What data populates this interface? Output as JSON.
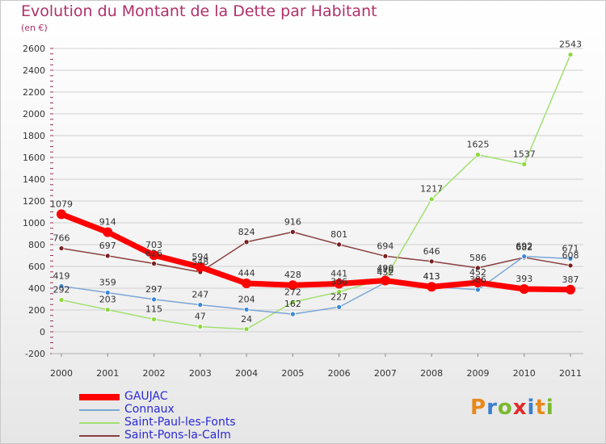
{
  "header": {
    "title": "Evolution du Montant de la Dette par Habitant",
    "subtitle": "(en €)"
  },
  "logo": {
    "text": "Proxiti"
  },
  "colors": {
    "title": "#b0306a",
    "legend_text": "#2a2ad8",
    "grid": "#d0d0d0"
  },
  "chart_data": {
    "type": "line",
    "x": [
      "2000",
      "2001",
      "2002",
      "2003",
      "2004",
      "2005",
      "2006",
      "2007",
      "2008",
      "2009",
      "2010",
      "2011"
    ],
    "ylim": [
      -200,
      2600
    ],
    "yticks": [
      -200,
      0,
      200,
      400,
      600,
      800,
      1000,
      1200,
      1400,
      1600,
      1800,
      2000,
      2200,
      2400,
      2600
    ],
    "grid": "horizontal",
    "legend_position": "bottom-left",
    "series": [
      {
        "name": "GAUJAC",
        "color": "#ff0000",
        "marker": "#ff0000",
        "width": 7,
        "values": [
          1079,
          914,
          703,
          594,
          444,
          428,
          441,
          470,
          413,
          452,
          393,
          387
        ]
      },
      {
        "name": "Connaux",
        "color": "#7aa6d6",
        "marker": "#3a88d8",
        "width": 1.5,
        "values": [
          419,
          359,
          297,
          247,
          204,
          162,
          227,
          452,
          413,
          386,
          692,
          671
        ]
      },
      {
        "name": "Saint-Paul-les-Fonts",
        "color": "#a2e070",
        "marker": "#8cd83a",
        "width": 1.5,
        "values": [
          292,
          203,
          115,
          47,
          24,
          272,
          366,
          490,
          1217,
          1625,
          1537,
          2543
        ]
      },
      {
        "name": "Saint-Pons-la-Calm",
        "color": "#8a4040",
        "marker": "#7a1e1e",
        "width": 1.5,
        "values": [
          766,
          697,
          626,
          548,
          824,
          916,
          801,
          694,
          646,
          586,
          682,
          608
        ]
      }
    ]
  }
}
